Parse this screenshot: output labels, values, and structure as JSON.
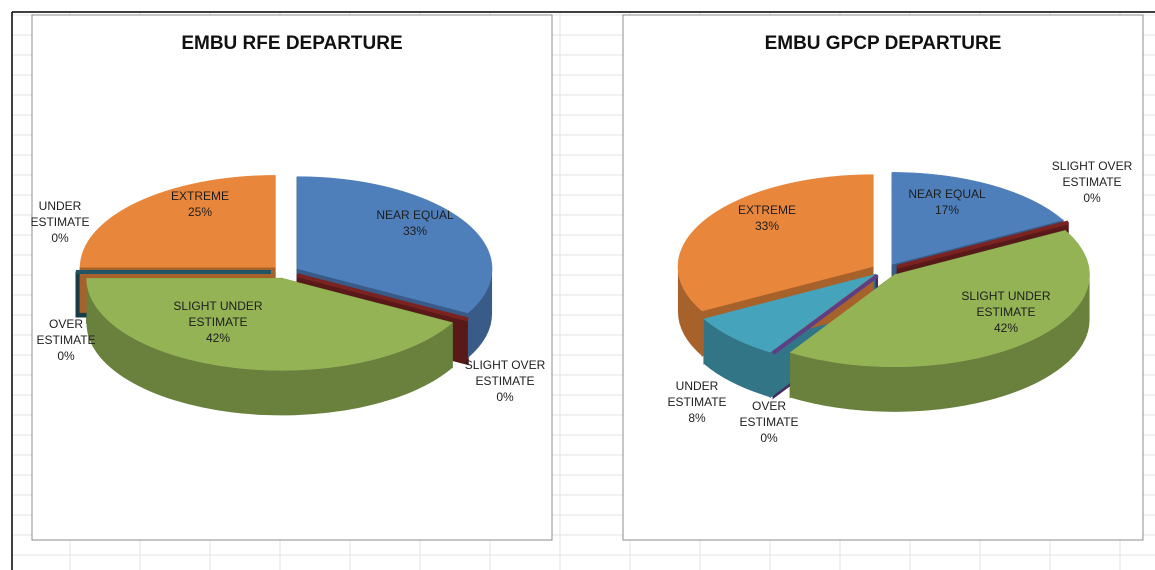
{
  "chart_data": [
    {
      "type": "pie",
      "title": "EMBU RFE DEPARTURE",
      "categories": [
        "NEAR EQUAL",
        "SLIGHT OVER ESTIMATE",
        "SLIGHT UNDER ESTIMATE",
        "OVER ESTIMATE",
        "UNDER ESTIMATE",
        "EXTREME"
      ],
      "values": [
        33,
        0,
        42,
        0,
        0,
        25
      ],
      "value_labels": [
        "33%",
        "0%",
        "42%",
        "0%",
        "0%",
        "25%"
      ],
      "colors": [
        "#4f7fbb",
        "#7a2321",
        "#93b355",
        "#1d3550",
        "#1f5564",
        "#e8873c"
      ]
    },
    {
      "type": "pie",
      "title": "EMBU GPCP DEPARTURE",
      "categories": [
        "NEAR EQUAL",
        "SLIGHT OVER ESTIMATE",
        "SLIGHT UNDER ESTIMATE",
        "OVER ESTIMATE",
        "UNDER ESTIMATE",
        "EXTREME"
      ],
      "values": [
        17,
        0,
        42,
        0,
        8,
        33
      ],
      "value_labels": [
        "17%",
        "0%",
        "42%",
        "0%",
        "8%",
        "33%"
      ],
      "colors": [
        "#4f7fbb",
        "#7a2321",
        "#93b355",
        "#5e3f86",
        "#45a3bb",
        "#e8873c"
      ]
    }
  ]
}
